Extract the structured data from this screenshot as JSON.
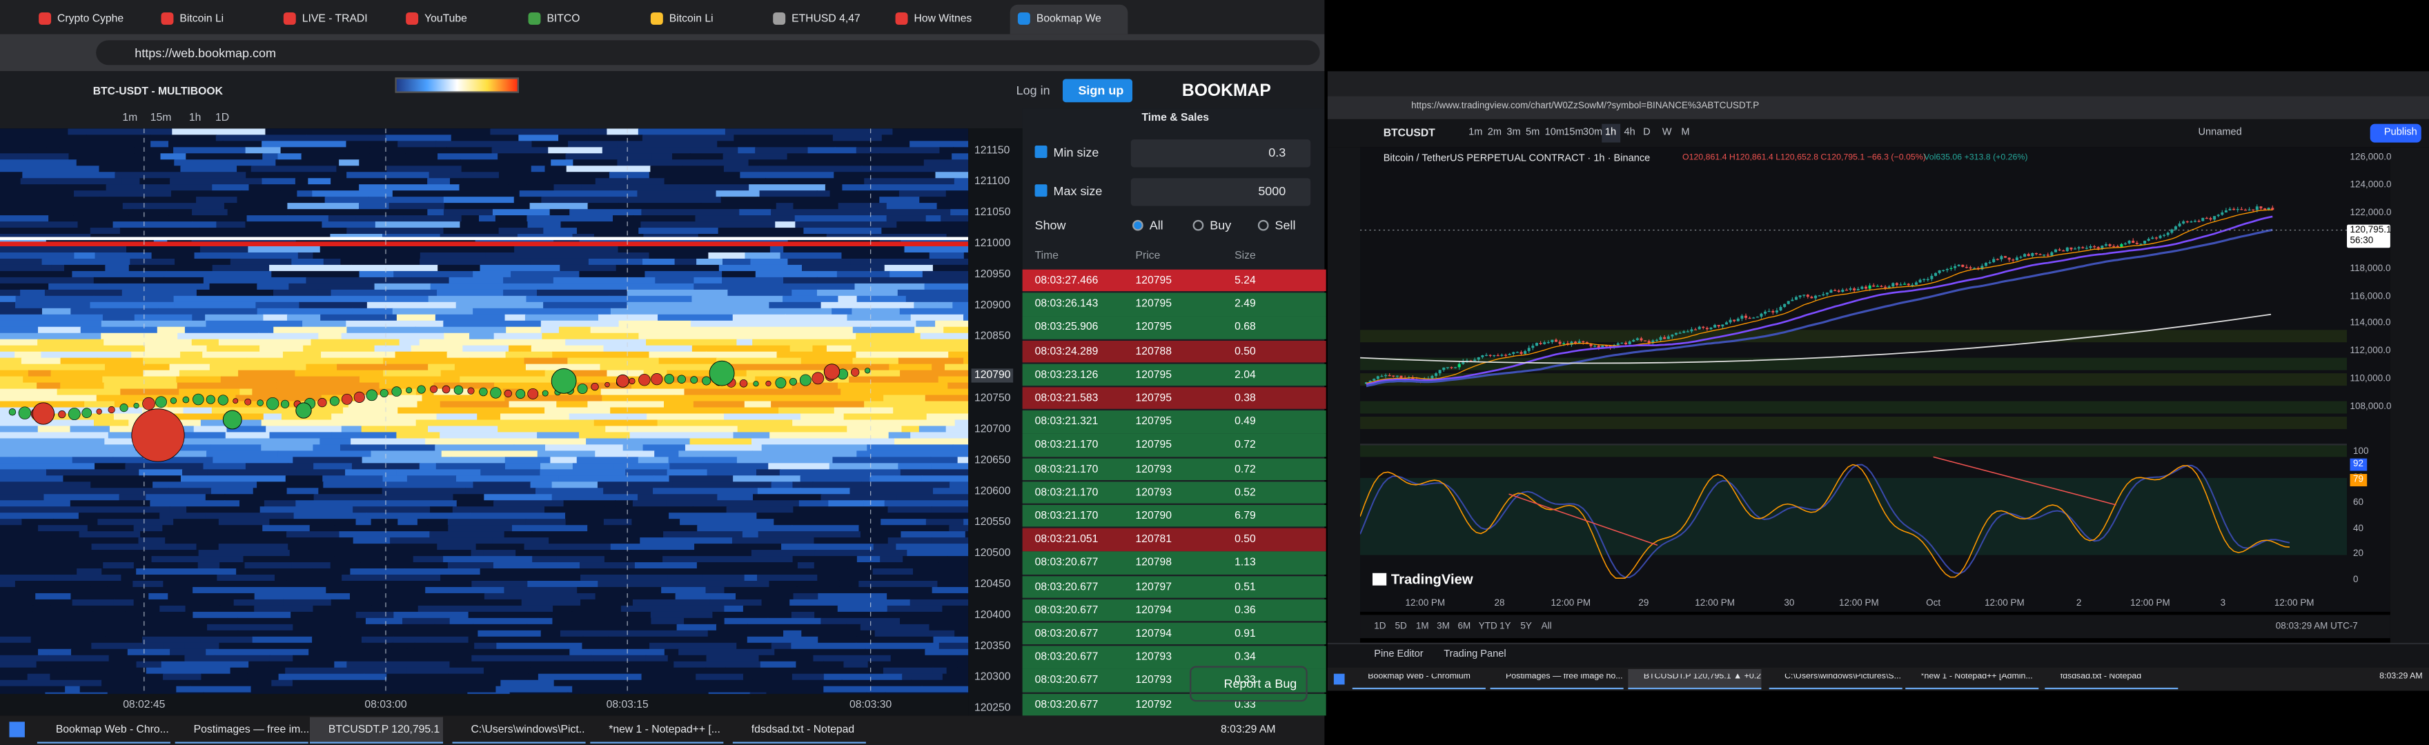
{
  "left_browser": {
    "tabs": [
      "Crypto Cyphe",
      "Bitcoin Li",
      "LIVE - TRADI",
      "YouTube",
      "BITCO",
      "Bitcoin Li",
      "ETHUSD 4,47",
      "How Witnes",
      "Bookmap We"
    ],
    "url": "https://web.bookmap.com",
    "taskbar": {
      "items": [
        "Bookmap Web - Chro...",
        "Postimages — free im...",
        "BTCUSDT.P 120,795.1 ...",
        "C:\\Users\\windows\\Pict...",
        "*new 1 - Notepad++ [...",
        "fdsdsad.txt - Notepad"
      ],
      "clock": "8:03:29 AM"
    }
  },
  "bookmap": {
    "symbol": "BTC-USDT - MULTIBOOK",
    "timeframes": [
      "1m",
      "15m",
      "1h",
      "1D"
    ],
    "login": "Log in",
    "signup": "Sign up",
    "brand": "BOOKMAP",
    "price_axis": [
      121150,
      121100,
      121050,
      121000,
      120950,
      120900,
      120850,
      120750,
      120700,
      120650,
      120600,
      120550,
      120500,
      120450,
      120400,
      120350,
      120300,
      120250
    ],
    "current_price": 120790,
    "time_axis": [
      "08:02:45",
      "08:03:00",
      "08:03:15",
      "08:03:30"
    ]
  },
  "time_sales": {
    "title": "Time & Sales",
    "min_size_label": "Min size",
    "min_size": "0.3",
    "max_size_label": "Max size",
    "max_size": "5000",
    "show_label": "Show",
    "show_options": [
      "All",
      "Buy",
      "Sell"
    ],
    "columns": [
      "Time",
      "Price",
      "Size"
    ],
    "rows": [
      {
        "time": "08:03:27.466",
        "price": "120795",
        "size": "5.24",
        "side": "sell"
      },
      {
        "time": "08:03:26.143",
        "price": "120795",
        "size": "2.49",
        "side": "buy"
      },
      {
        "time": "08:03:25.906",
        "price": "120795",
        "size": "0.68",
        "side": "buy"
      },
      {
        "time": "08:03:24.289",
        "price": "120788",
        "size": "0.50",
        "side": "sell"
      },
      {
        "time": "08:03:23.126",
        "price": "120795",
        "size": "2.04",
        "side": "buy"
      },
      {
        "time": "08:03:21.583",
        "price": "120795",
        "size": "0.38",
        "side": "sell"
      },
      {
        "time": "08:03:21.321",
        "price": "120795",
        "size": "0.49",
        "side": "buy"
      },
      {
        "time": "08:03:21.170",
        "price": "120795",
        "size": "0.72",
        "side": "buy"
      },
      {
        "time": "08:03:21.170",
        "price": "120793",
        "size": "0.72",
        "side": "buy"
      },
      {
        "time": "08:03:21.170",
        "price": "120793",
        "size": "0.52",
        "side": "buy"
      },
      {
        "time": "08:03:21.170",
        "price": "120790",
        "size": "6.79",
        "side": "buy"
      },
      {
        "time": "08:03:21.051",
        "price": "120781",
        "size": "0.50",
        "side": "sell"
      },
      {
        "time": "08:03:20.677",
        "price": "120798",
        "size": "1.13",
        "side": "buy"
      },
      {
        "time": "08:03:20.677",
        "price": "120797",
        "size": "0.51",
        "side": "buy"
      },
      {
        "time": "08:03:20.677",
        "price": "120794",
        "size": "0.36",
        "side": "buy"
      },
      {
        "time": "08:03:20.677",
        "price": "120794",
        "size": "0.91",
        "side": "buy"
      },
      {
        "time": "08:03:20.677",
        "price": "120793",
        "size": "0.34",
        "side": "buy"
      },
      {
        "time": "08:03:20.677",
        "price": "120793",
        "size": "0.33",
        "side": "buy"
      },
      {
        "time": "08:03:20.677",
        "price": "120792",
        "size": "0.33",
        "side": "buy"
      }
    ],
    "report_bug": "Report a Bug"
  },
  "right_browser": {
    "url": "https://www.tradingview.com/chart/W0ZzSowM/?symbol=BINANCE%3ABTCUSDT.P",
    "taskbar": {
      "items": [
        "Bookmap Web - Chromium",
        "Postimages — free image ho...",
        "BTCUSDT.P 120,795.1 ▲ +0.26...",
        "C:\\Users\\windows\\Pictures\\S...",
        "*new 1 - Notepad++ [Admin...",
        "fdsdsad.txt - Notepad"
      ],
      "clock": "8:03:29 AM"
    }
  },
  "tradingview": {
    "symbol": "BTCUSDT",
    "intervals": [
      "1m",
      "2m",
      "3m",
      "5m",
      "10m",
      "15m",
      "30m",
      "1h",
      "4h",
      "D",
      "W",
      "M"
    ],
    "layout_name": "Unnamed",
    "publish": "Publish",
    "title": "Bitcoin / TetherUS PERPETUAL CONTRACT · 1h · Binance",
    "ohlc": "O120,861.4 H120,861.4 L120,652.8 C120,795.1 −66.3 (−0.05%)",
    "volume": "Vol635.06 +313.8 (+0.26%)",
    "price_axis": [
      {
        "value": 126000,
        "label": "126,000.0"
      },
      {
        "value": 124000,
        "label": "124,000.0"
      },
      {
        "value": 122000,
        "label": "122,000.0"
      },
      {
        "value": 118000,
        "label": "118,000.0"
      },
      {
        "value": 116000,
        "label": "116,000.0"
      },
      {
        "value": 114000,
        "label": "114,000.0"
      },
      {
        "value": 112000,
        "label": "112,000.0"
      },
      {
        "value": 110000,
        "label": "110,000.0"
      },
      {
        "value": 108000,
        "label": "108,000.0"
      }
    ],
    "last_price": {
      "value": 120795.1,
      "label": "120,795.1"
    },
    "countdown": "56:30",
    "time_axis": [
      "12:00 PM",
      "28",
      "12:00 PM",
      "29",
      "12:00 PM",
      "30",
      "12:00 PM",
      "Oct",
      "12:00 PM",
      "2",
      "12:00 PM",
      "3",
      "12:00 PM"
    ],
    "osc_axis": [
      100,
      80,
      60,
      40,
      20,
      0
    ],
    "osc_values": [
      92,
      79
    ],
    "logo": "TradingView",
    "ranges": [
      "1D",
      "5D",
      "1M",
      "3M",
      "6M",
      "YTD",
      "1Y",
      "5Y",
      "All"
    ],
    "clock": "08:03:29 AM UTC-7",
    "panels": [
      "Pine Editor",
      "Trading Panel"
    ]
  }
}
